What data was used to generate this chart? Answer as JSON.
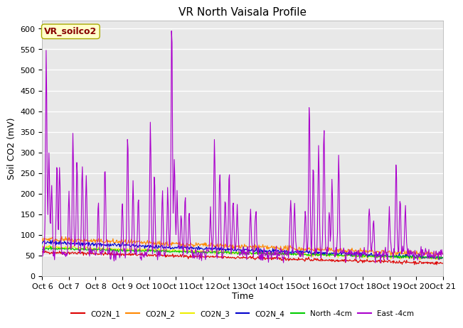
{
  "title": "VR North Vaisala Profile",
  "ylabel": "Soil CO2 (mV)",
  "xlabel": "Time",
  "annotation": "VR_soilco2",
  "ylim": [
    0,
    620
  ],
  "yticks": [
    0,
    50,
    100,
    150,
    200,
    250,
    300,
    350,
    400,
    450,
    500,
    550,
    600
  ],
  "x_tick_labels": [
    "Oct 6",
    "Oct 7",
    "Oct 8",
    "Oct 9",
    "Oct 10",
    "Oct 11",
    "Oct 12",
    "Oct 13",
    "Oct 14",
    "Oct 15",
    "Oct 16",
    "Oct 17",
    "Oct 18",
    "Oct 19",
    "Oct 20",
    "Oct 21"
  ],
  "series_colors": {
    "CO2N_1": "#dd0000",
    "CO2N_2": "#ff8800",
    "CO2N_3": "#eeee00",
    "CO2N_4": "#0000cc",
    "North_4cm": "#00cc00",
    "East_4cm": "#aa00cc"
  },
  "bg_color": "#e8e8e8",
  "grid_color": "#ffffff",
  "title_fontsize": 11,
  "axis_label_fontsize": 9,
  "tick_fontsize": 8,
  "annotation_color": "#880000",
  "annotation_bg": "#ffffcc",
  "annotation_edge": "#aaaa00"
}
